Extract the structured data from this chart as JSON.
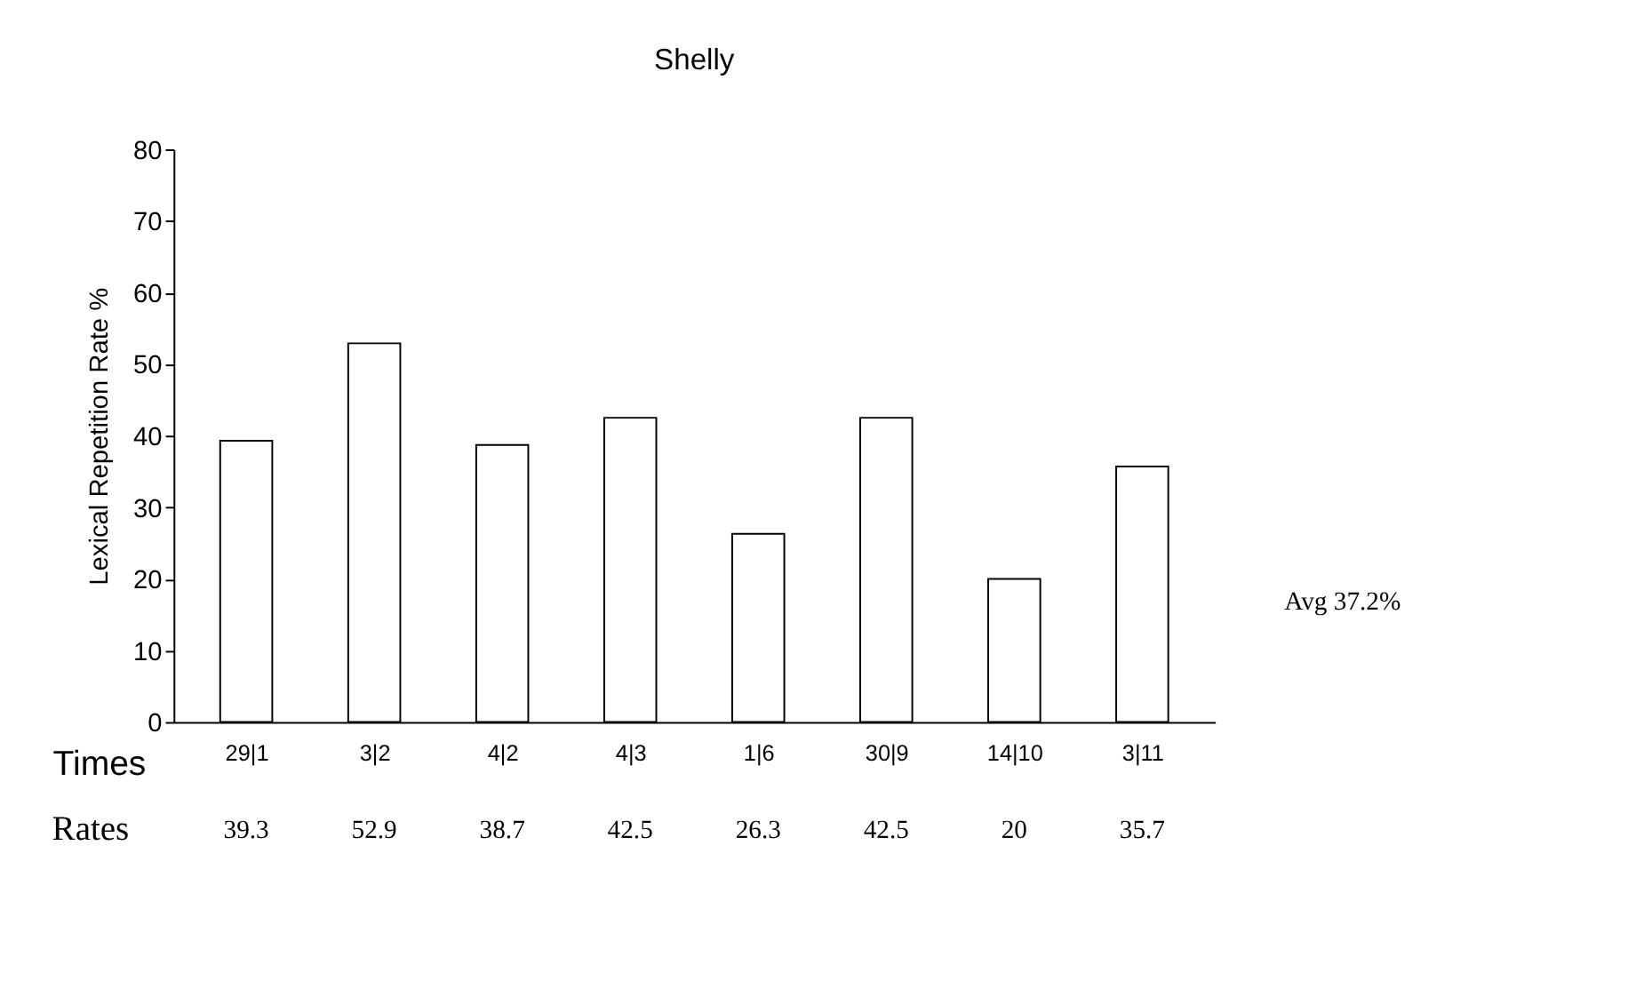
{
  "chart_data": {
    "type": "bar",
    "title": "Shelly",
    "ylabel": "Lexical Repetition Rate %",
    "xlabel": "Times",
    "categories": [
      "29|1",
      "3|2",
      "4|2",
      "4|3",
      "1|6",
      "30|9",
      "14|10",
      "3|11"
    ],
    "values": [
      39.3,
      52.9,
      38.7,
      42.5,
      26.3,
      42.5,
      20,
      35.7
    ],
    "color": "#ffffff",
    "ylim": [
      0,
      80
    ],
    "yticks": [
      0,
      10,
      20,
      30,
      40,
      50,
      60,
      70,
      80
    ],
    "data_labels": true,
    "grid": false,
    "annotations": [
      "Rates",
      "Avg 37.2%"
    ]
  }
}
